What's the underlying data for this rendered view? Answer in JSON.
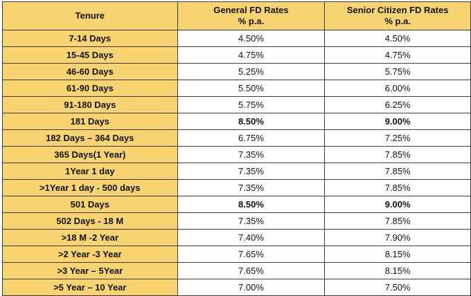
{
  "headers": {
    "tenure": "Tenure",
    "general_line1": "General FD Rates",
    "general_line2": "% p.a.",
    "senior_line1": "Senior Citizen FD Rates",
    "senior_line2": "% p.a."
  },
  "rows": [
    {
      "tenure": "7-14 Days",
      "general": "4.50%",
      "senior": "4.50%",
      "bold": false
    },
    {
      "tenure": "15-45 Days",
      "general": "4.75%",
      "senior": "4.75%",
      "bold": false
    },
    {
      "tenure": "46-60 Days",
      "general": "5.25%",
      "senior": "5.75%",
      "bold": false
    },
    {
      "tenure": "61-90 Days",
      "general": "5.50%",
      "senior": "6.00%",
      "bold": false
    },
    {
      "tenure": "91-180 Days",
      "general": "5.75%",
      "senior": "6.25%",
      "bold": false
    },
    {
      "tenure": "181 Days",
      "general": "8.50%",
      "senior": "9.00%",
      "bold": true
    },
    {
      "tenure": "182 Days – 364 Days",
      "general": "6.75%",
      "senior": "7.25%",
      "bold": false
    },
    {
      "tenure": "365 Days(1 Year)",
      "general": "7.35%",
      "senior": "7.85%",
      "bold": false
    },
    {
      "tenure": "1Year 1 day",
      "general": "7.35%",
      "senior": "7.85%",
      "bold": false
    },
    {
      "tenure": ">1Year 1 day - 500 days",
      "general": "7.35%",
      "senior": "7.85%",
      "bold": false
    },
    {
      "tenure": "501 Days",
      "general": "8.50%",
      "senior": "9.00%",
      "bold": true
    },
    {
      "tenure": "502 Days - 18 M",
      "general": "7.35%",
      "senior": "7.85%",
      "bold": false
    },
    {
      "tenure": ">18 M -2 Year",
      "general": "7.40%",
      "senior": "7.90%",
      "bold": false
    },
    {
      "tenure": ">2 Year -3 Year",
      "general": "7.65%",
      "senior": "8.15%",
      "bold": false
    },
    {
      "tenure": ">3 Year – 5Year",
      "general": "7.65%",
      "senior": "8.15%",
      "bold": false
    },
    {
      "tenure": ">5 Year – 10 Year",
      "general": "7.00%",
      "senior": "7.50%",
      "bold": false
    }
  ],
  "colors": {
    "header_bg": "#f7d372",
    "border": "#3a3a3a"
  }
}
